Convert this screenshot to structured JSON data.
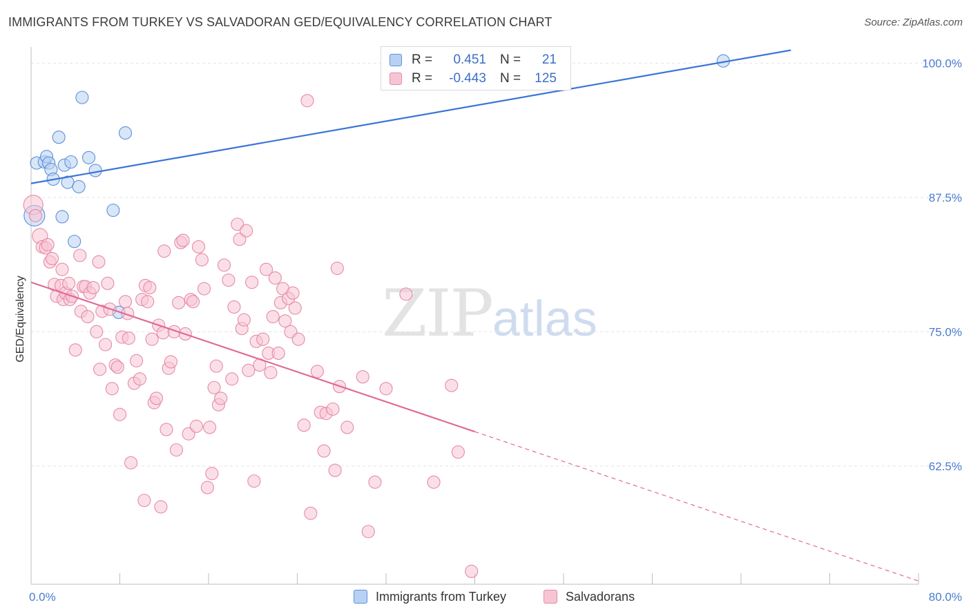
{
  "title": "IMMIGRANTS FROM TURKEY VS SALVADORAN GED/EQUIVALENCY CORRELATION CHART",
  "source": "Source: ZipAtlas.com",
  "watermark": {
    "zip": "ZIP",
    "atlas": "atlas"
  },
  "stats": [
    {
      "r_label": "R =",
      "r_value": "0.451",
      "n_label": "N =",
      "n_value": "21",
      "color": "#5b8fd9",
      "fill": "#b8d1f3"
    },
    {
      "r_label": "R =",
      "r_value": "-0.443",
      "n_label": "N =",
      "n_value": "125",
      "color": "#e58aa8",
      "fill": "#f7c4d4"
    }
  ],
  "legend": [
    {
      "label": "Immigrants from Turkey",
      "color": "#5b8fd9",
      "fill": "#b8d1f3"
    },
    {
      "label": "Salvadorans",
      "color": "#e58aa8",
      "fill": "#f7c4d4"
    }
  ],
  "chart_data": {
    "type": "scatter",
    "title": "IMMIGRANTS FROM TURKEY VS SALVADORAN GED/EQUIVALENCY CORRELATION CHART",
    "xlabel": "",
    "ylabel": "GED/Equivalency",
    "xlim": [
      0,
      80
    ],
    "ylim": [
      51.5,
      101.5
    ],
    "x_tick_labels": [
      "0.0%",
      "80.0%"
    ],
    "y_ticks": [
      62.5,
      75.0,
      87.5,
      100.0
    ],
    "y_tick_labels": [
      "62.5%",
      "75.0%",
      "87.5%",
      "100.0%"
    ],
    "grid": "horizontal dashed",
    "legend_position": "bottom",
    "series": [
      {
        "name": "Immigrants from Turkey",
        "color": "#5b8fd9",
        "fill": "#b8d1f3",
        "trend": {
          "x": [
            0,
            68.5
          ],
          "y": [
            88.8,
            101.2
          ],
          "solid_until": 68.5
        },
        "points": [
          [
            0.3,
            85.8
          ],
          [
            0.5,
            90.7
          ],
          [
            1.2,
            90.8
          ],
          [
            1.4,
            91.3
          ],
          [
            1.6,
            90.7
          ],
          [
            1.8,
            90.1
          ],
          [
            2.0,
            89.2
          ],
          [
            2.5,
            93.1
          ],
          [
            2.8,
            85.7
          ],
          [
            3.0,
            90.5
          ],
          [
            3.3,
            88.9
          ],
          [
            3.6,
            90.8
          ],
          [
            3.9,
            83.4
          ],
          [
            4.3,
            88.5
          ],
          [
            4.6,
            96.8
          ],
          [
            5.2,
            91.2
          ],
          [
            5.8,
            90.0
          ],
          [
            7.4,
            86.3
          ],
          [
            7.9,
            76.8
          ],
          [
            8.5,
            93.5
          ],
          [
            62.4,
            100.2
          ]
        ]
      },
      {
        "name": "Salvadorans",
        "color": "#e58aa8",
        "fill": "#f7c4d4",
        "trend": {
          "x": [
            0,
            80
          ],
          "y": [
            79.6,
            51.8
          ],
          "solid_until": 40
        },
        "points": [
          [
            0.2,
            86.8
          ],
          [
            0.4,
            85.8
          ],
          [
            0.8,
            83.9
          ],
          [
            1.0,
            82.9
          ],
          [
            1.3,
            82.8
          ],
          [
            1.5,
            83.1
          ],
          [
            1.7,
            81.5
          ],
          [
            1.9,
            81.8
          ],
          [
            2.1,
            79.4
          ],
          [
            2.3,
            78.3
          ],
          [
            2.7,
            79.3
          ],
          [
            2.8,
            80.8
          ],
          [
            2.9,
            78.0
          ],
          [
            3.1,
            78.6
          ],
          [
            3.4,
            79.5
          ],
          [
            3.5,
            78.0
          ],
          [
            3.7,
            78.3
          ],
          [
            4.0,
            73.3
          ],
          [
            4.4,
            82.1
          ],
          [
            4.5,
            76.9
          ],
          [
            4.7,
            79.2
          ],
          [
            4.9,
            79.2
          ],
          [
            5.1,
            76.4
          ],
          [
            5.3,
            78.6
          ],
          [
            5.6,
            79.1
          ],
          [
            5.9,
            75.0
          ],
          [
            6.1,
            81.5
          ],
          [
            6.2,
            71.5
          ],
          [
            6.4,
            76.9
          ],
          [
            6.7,
            73.8
          ],
          [
            6.9,
            79.5
          ],
          [
            7.1,
            77.1
          ],
          [
            7.3,
            69.7
          ],
          [
            7.6,
            71.9
          ],
          [
            7.8,
            71.7
          ],
          [
            8.0,
            67.3
          ],
          [
            8.2,
            74.5
          ],
          [
            8.5,
            77.8
          ],
          [
            8.7,
            76.7
          ],
          [
            8.8,
            74.4
          ],
          [
            9.0,
            62.8
          ],
          [
            9.3,
            70.2
          ],
          [
            9.5,
            72.3
          ],
          [
            9.8,
            70.6
          ],
          [
            10.0,
            78.0
          ],
          [
            10.2,
            59.3
          ],
          [
            10.3,
            79.3
          ],
          [
            10.5,
            77.8
          ],
          [
            10.7,
            79.1
          ],
          [
            10.9,
            74.3
          ],
          [
            11.1,
            68.4
          ],
          [
            11.3,
            68.8
          ],
          [
            11.5,
            75.6
          ],
          [
            11.7,
            58.7
          ],
          [
            11.9,
            74.9
          ],
          [
            12.0,
            82.5
          ],
          [
            12.2,
            65.9
          ],
          [
            12.4,
            71.6
          ],
          [
            12.6,
            72.2
          ],
          [
            12.9,
            75.0
          ],
          [
            13.1,
            64.0
          ],
          [
            13.3,
            77.7
          ],
          [
            13.5,
            83.3
          ],
          [
            13.7,
            83.5
          ],
          [
            13.9,
            74.8
          ],
          [
            14.2,
            65.5
          ],
          [
            14.4,
            78.0
          ],
          [
            14.6,
            77.8
          ],
          [
            14.9,
            66.2
          ],
          [
            15.1,
            82.9
          ],
          [
            15.4,
            81.7
          ],
          [
            15.6,
            79.0
          ],
          [
            15.9,
            60.5
          ],
          [
            16.1,
            66.1
          ],
          [
            16.3,
            61.8
          ],
          [
            16.5,
            69.8
          ],
          [
            16.7,
            71.8
          ],
          [
            16.9,
            68.2
          ],
          [
            17.1,
            68.8
          ],
          [
            17.4,
            81.2
          ],
          [
            17.8,
            79.8
          ],
          [
            18.1,
            70.6
          ],
          [
            18.3,
            77.3
          ],
          [
            18.6,
            85.0
          ],
          [
            18.8,
            83.6
          ],
          [
            19.0,
            75.3
          ],
          [
            19.2,
            76.1
          ],
          [
            19.4,
            84.4
          ],
          [
            19.6,
            71.4
          ],
          [
            19.9,
            79.6
          ],
          [
            20.1,
            61.1
          ],
          [
            20.3,
            74.1
          ],
          [
            20.6,
            71.9
          ],
          [
            20.9,
            74.3
          ],
          [
            21.2,
            80.8
          ],
          [
            21.4,
            73.0
          ],
          [
            21.6,
            71.2
          ],
          [
            21.8,
            76.4
          ],
          [
            22.0,
            80.0
          ],
          [
            22.3,
            73.0
          ],
          [
            22.5,
            77.7
          ],
          [
            22.7,
            79.0
          ],
          [
            22.9,
            76.0
          ],
          [
            23.2,
            78.1
          ],
          [
            23.4,
            75.0
          ],
          [
            23.6,
            78.6
          ],
          [
            23.8,
            77.2
          ],
          [
            24.1,
            74.3
          ],
          [
            24.6,
            66.3
          ],
          [
            24.9,
            96.5
          ],
          [
            25.2,
            58.1
          ],
          [
            25.8,
            71.3
          ],
          [
            26.1,
            67.5
          ],
          [
            26.4,
            63.9
          ],
          [
            26.6,
            67.4
          ],
          [
            27.2,
            67.8
          ],
          [
            27.4,
            62.1
          ],
          [
            27.6,
            80.9
          ],
          [
            27.8,
            69.9
          ],
          [
            28.5,
            66.1
          ],
          [
            29.9,
            70.8
          ],
          [
            30.4,
            56.4
          ],
          [
            31.0,
            61.0
          ],
          [
            32.0,
            69.7
          ],
          [
            33.8,
            78.5
          ],
          [
            36.3,
            61.0
          ],
          [
            37.9,
            70.0
          ],
          [
            38.5,
            63.8
          ],
          [
            39.7,
            52.7
          ]
        ]
      }
    ]
  }
}
